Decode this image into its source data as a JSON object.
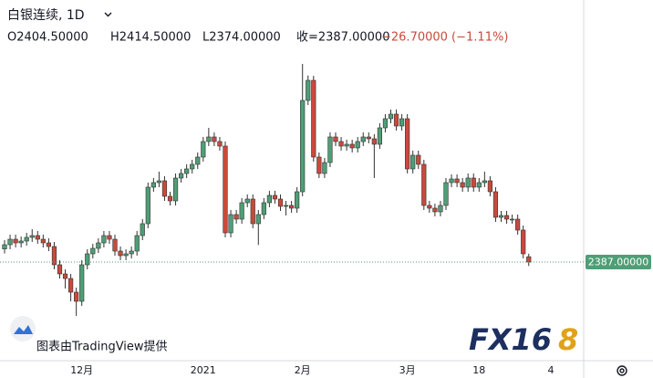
{
  "chart_data": {
    "type": "candlestick",
    "title": "白银连续, 1D",
    "ohlc_text": [
      "O2404.50000",
      "H2414.50000",
      "L2374.00000",
      "收=2387.00000",
      "−26.70000 (−1.11%)"
    ],
    "watermark": "图表由TradingView提供",
    "logo": [
      "FX16",
      "8"
    ],
    "up_color": "#4f9e76",
    "down_color": "#c94a3c",
    "last_price": {
      "value": 2387,
      "label": "2387.00000"
    },
    "ylim": [
      2063,
      3248
    ],
    "x": [
      null,
      null,
      null,
      null,
      null,
      null,
      null,
      null,
      null,
      null,
      null,
      null,
      null,
      null,
      "12月",
      null,
      null,
      null,
      null,
      null,
      null,
      null,
      null,
      null,
      null,
      null,
      null,
      null,
      null,
      null,
      null,
      null,
      null,
      null,
      null,
      null,
      "2021",
      null,
      null,
      null,
      null,
      null,
      null,
      null,
      null,
      null,
      null,
      null,
      null,
      null,
      null,
      null,
      null,
      null,
      "2月",
      null,
      null,
      null,
      null,
      null,
      null,
      null,
      null,
      null,
      null,
      null,
      null,
      null,
      null,
      null,
      null,
      null,
      null,
      "3月",
      null,
      null,
      null,
      null,
      null,
      null,
      null,
      null,
      null,
      null,
      null,
      null,
      "18",
      null,
      null,
      null,
      null,
      null,
      null,
      null,
      null,
      null,
      null,
      null,
      null,
      "4"
    ],
    "open": [
      2430,
      2444,
      2462,
      2450,
      2456,
      2468,
      2474,
      2462,
      2450,
      2438,
      2378,
      2348,
      2333,
      2288,
      2258,
      2378,
      2414,
      2432,
      2450,
      2474,
      2462,
      2423,
      2408,
      2414,
      2423,
      2474,
      2513,
      2633,
      2648,
      2654,
      2603,
      2588,
      2663,
      2678,
      2693,
      2708,
      2732,
      2783,
      2798,
      2783,
      2768,
      2483,
      2543,
      2528,
      2582,
      2594,
      2513,
      2543,
      2582,
      2606,
      2594,
      2570,
      2573,
      2564,
      2618,
      2918,
      2984,
      2732,
      2678,
      2714,
      2798,
      2783,
      2768,
      2774,
      2762,
      2783,
      2798,
      2792,
      2774,
      2828,
      2858,
      2873,
      2834,
      2858,
      2693,
      2738,
      2708,
      2573,
      2564,
      2552,
      2573,
      2648,
      2660,
      2648,
      2633,
      2663,
      2633,
      2648,
      2654,
      2618,
      2534,
      2540,
      2528,
      2528,
      2492,
      2404.5,
      null,
      null,
      null,
      null
    ],
    "high": [
      2459,
      2477,
      2477,
      2471,
      2483,
      2495,
      2489,
      2477,
      2465,
      2453,
      2393,
      2363,
      2348,
      2303,
      2393,
      2429,
      2447,
      2465,
      2489,
      2489,
      2477,
      2438,
      2429,
      2438,
      2489,
      2528,
      2648,
      2663,
      2684,
      2669,
      2618,
      2678,
      2693,
      2708,
      2723,
      2747,
      2798,
      2828,
      2813,
      2798,
      2783,
      2558,
      2558,
      2597,
      2609,
      2609,
      2558,
      2597,
      2621,
      2621,
      2609,
      2588,
      2588,
      2633,
      3038,
      3000,
      2999,
      2747,
      2729,
      2813,
      2813,
      2798,
      2789,
      2789,
      2798,
      2813,
      2813,
      2807,
      2843,
      2873,
      2888,
      2888,
      2873,
      2873,
      2753,
      2753,
      2723,
      2588,
      2579,
      2588,
      2663,
      2675,
      2675,
      2663,
      2678,
      2678,
      2663,
      2684,
      2669,
      2633,
      2555,
      2555,
      2543,
      2543,
      2507,
      2414.5,
      null,
      null,
      null,
      null
    ],
    "low": [
      2415,
      2429,
      2435,
      2435,
      2441,
      2453,
      2447,
      2435,
      2423,
      2363,
      2333,
      2300,
      2258,
      2210,
      2243,
      2363,
      2399,
      2417,
      2435,
      2447,
      2408,
      2393,
      2393,
      2399,
      2408,
      2459,
      2498,
      2618,
      2633,
      2588,
      2573,
      2573,
      2648,
      2663,
      2678,
      2693,
      2717,
      2768,
      2768,
      2753,
      2468,
      2468,
      2513,
      2513,
      2567,
      2498,
      2443,
      2528,
      2567,
      2579,
      2555,
      2540,
      2549,
      2549,
      2603,
      2903,
      2717,
      2663,
      2663,
      2699,
      2768,
      2753,
      2753,
      2747,
      2747,
      2768,
      2777,
      2663,
      2759,
      2813,
      2843,
      2819,
      2819,
      2678,
      2678,
      2693,
      2558,
      2549,
      2537,
      2537,
      2558,
      2633,
      2633,
      2618,
      2618,
      2618,
      2618,
      2633,
      2603,
      2519,
      2519,
      2513,
      2513,
      2477,
      2399,
      2374,
      null,
      null,
      null,
      null
    ],
    "close": [
      2444,
      2462,
      2450,
      2456,
      2468,
      2474,
      2462,
      2450,
      2438,
      2378,
      2348,
      2333,
      2288,
      2258,
      2378,
      2414,
      2432,
      2450,
      2474,
      2462,
      2423,
      2408,
      2414,
      2423,
      2474,
      2513,
      2633,
      2648,
      2654,
      2603,
      2588,
      2663,
      2678,
      2693,
      2708,
      2732,
      2783,
      2798,
      2783,
      2768,
      2483,
      2543,
      2528,
      2582,
      2594,
      2513,
      2543,
      2582,
      2606,
      2594,
      2570,
      2573,
      2564,
      2618,
      2918,
      2984,
      2732,
      2678,
      2714,
      2798,
      2783,
      2768,
      2774,
      2762,
      2783,
      2798,
      2792,
      2774,
      2828,
      2858,
      2873,
      2834,
      2858,
      2693,
      2738,
      2708,
      2573,
      2564,
      2552,
      2573,
      2648,
      2660,
      2648,
      2633,
      2663,
      2633,
      2648,
      2654,
      2618,
      2534,
      2540,
      2528,
      2528,
      2492,
      2414,
      2387,
      null,
      null,
      null,
      null
    ]
  }
}
